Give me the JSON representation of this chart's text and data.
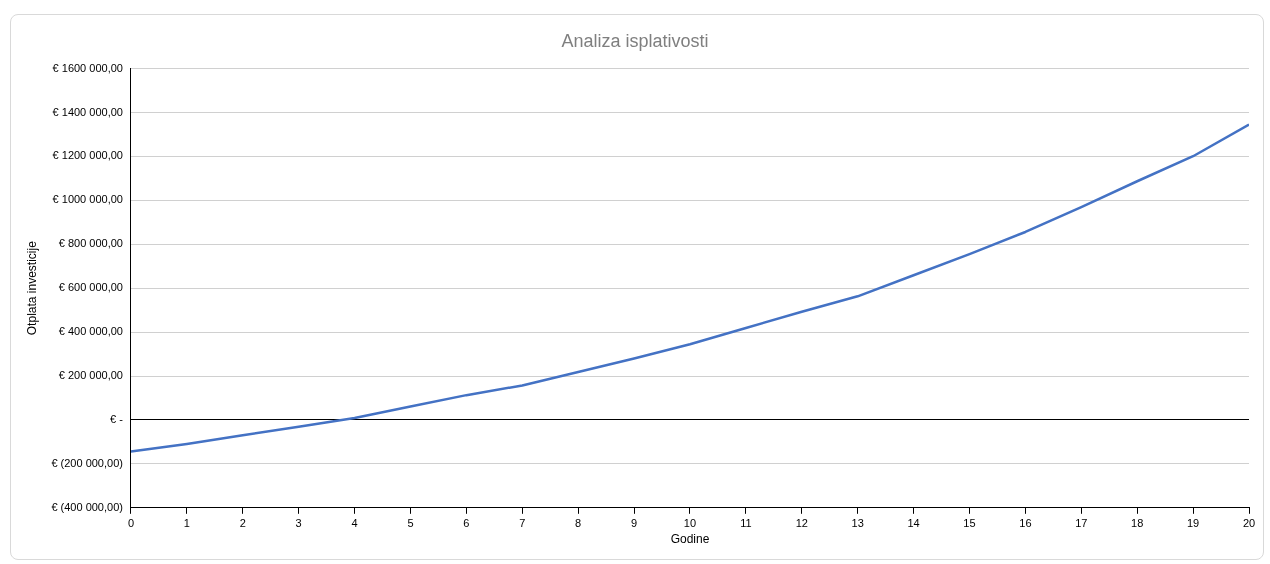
{
  "chart_data": {
    "type": "line",
    "title": "Analiza isplativosti",
    "xlabel": "Godine",
    "ylabel": "Otplata investicije",
    "x": [
      0,
      1,
      2,
      3,
      4,
      5,
      6,
      7,
      8,
      9,
      10,
      11,
      12,
      13,
      14,
      15,
      16,
      17,
      18,
      19,
      20
    ],
    "series": [
      {
        "color": "#4472c4",
        "values": [
          -144000,
          -109000,
          -70000,
          -31000,
          9000,
          61000,
          113000,
          157000,
          218000,
          280000,
          345000,
          419000,
          493000,
          563000,
          659000,
          755000,
          856000,
          969000,
          1087000,
          1201000,
          1345000
        ]
      }
    ],
    "xlim": [
      0,
      20
    ],
    "xticks": [
      0,
      1,
      2,
      3,
      4,
      5,
      6,
      7,
      8,
      9,
      10,
      11,
      12,
      13,
      14,
      15,
      16,
      17,
      18,
      19,
      20
    ],
    "ylim": [
      -400000,
      1600000
    ],
    "yticks": [
      {
        "value": -400000,
        "label": "€ (400 000,00)"
      },
      {
        "value": -200000,
        "label": "€ (200 000,00)"
      },
      {
        "value": 0,
        "label": "€ -"
      },
      {
        "value": 200000,
        "label": "€ 200 000,00"
      },
      {
        "value": 400000,
        "label": "€ 400 000,00"
      },
      {
        "value": 600000,
        "label": "€ 600 000,00"
      },
      {
        "value": 800000,
        "label": "€ 800 000,00"
      },
      {
        "value": 1000000,
        "label": "€ 1000 000,00"
      },
      {
        "value": 1200000,
        "label": "€ 1200 000,00"
      },
      {
        "value": 1400000,
        "label": "€ 1400 000,00"
      },
      {
        "value": 1600000,
        "label": "€ 1600 000,00"
      }
    ],
    "grid": "y",
    "legend": false,
    "marker": "none",
    "line_style": "solid"
  }
}
